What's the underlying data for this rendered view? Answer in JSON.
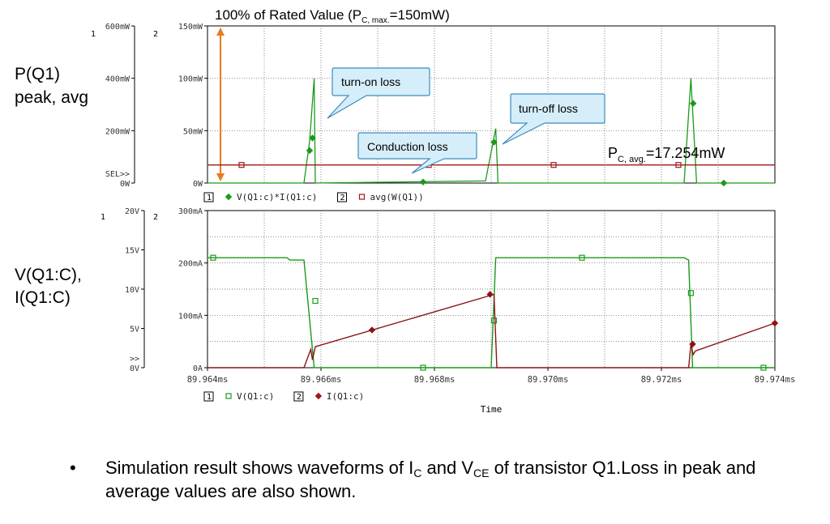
{
  "top_plot": {
    "heading_prefix": "100% of Rated Value (P",
    "heading_sub": "C, max.",
    "heading_suffix": "=150mW)",
    "side_label_line1": "P(Q1)",
    "side_label_line2": "peak, avg",
    "axis1_id": "1",
    "axis2_id": "2",
    "axis1_ticks": [
      "600mW",
      "400mW",
      "200mW",
      "0W"
    ],
    "axis1_sel": "SEL>>",
    "axis2_ticks": [
      "150mW",
      "100mW",
      "50mW",
      "0W"
    ],
    "legend": [
      {
        "box": "1",
        "marker": "diamond",
        "color": "#1a9a1a",
        "label": "V(Q1:c)*I(Q1:c)"
      },
      {
        "box": "2",
        "marker": "square",
        "color": "#a01818",
        "label": "avg(W(Q1))"
      }
    ],
    "callouts": {
      "turn_on": "turn-on loss",
      "turn_off": "turn-off loss",
      "conduction": "Conduction loss"
    },
    "avg_label_prefix": "P",
    "avg_label_sub": "C, avg.",
    "avg_label_suffix": "=17.254mW"
  },
  "bottom_plot": {
    "side_label_line1": "V(Q1:C),",
    "side_label_line2": "I(Q1:C)",
    "axis1_id": "1",
    "axis2_id": "2",
    "axis1_ticks": [
      "20V",
      "15V",
      "10V",
      "5V",
      "0V"
    ],
    "axis1_sel": ">>",
    "axis2_ticks": [
      "300mA",
      "200mA",
      "100mA",
      "0A"
    ],
    "x_ticks": [
      "89.964ms",
      "89.966ms",
      "89.968ms",
      "89.970ms",
      "89.972ms",
      "89.974ms"
    ],
    "x_title": "Time",
    "legend": [
      {
        "box": "1",
        "marker": "square",
        "color": "#1a9a1a",
        "label": "V(Q1:c)"
      },
      {
        "box": "2",
        "marker": "diamond",
        "color": "#a01818",
        "label": "I(Q1:c)"
      }
    ]
  },
  "bullet": {
    "symbol": "•",
    "t1": "Simulation result shows waveforms of I",
    "s1": "C",
    "t2": " and V",
    "s2": "CE",
    "t3": " of transistor Q1.Loss in peak and average values are also shown."
  },
  "chart_data": [
    {
      "type": "line",
      "title": "100% of Rated Value (PC, max.=150mW)",
      "xlabel": "",
      "ylabel": "P(Q1) peak, avg",
      "x_units": "ms",
      "xlim": [
        89.964,
        89.974
      ],
      "ylim": [
        0,
        150
      ],
      "y_units": "mW",
      "grid": true,
      "series": [
        {
          "name": "V(Q1:c)*I(Q1:c)",
          "color": "#1a9a1a",
          "points": [
            [
              89.964,
              0
            ],
            [
              89.9657,
              0
            ],
            [
              89.9658,
              40
            ],
            [
              89.96588,
              100
            ],
            [
              89.9659,
              0
            ],
            [
              89.9689,
              2
            ],
            [
              89.96908,
              52
            ],
            [
              89.96912,
              0
            ],
            [
              89.9724,
              0
            ],
            [
              89.97252,
              100
            ],
            [
              89.97262,
              0
            ],
            [
              89.974,
              0
            ]
          ],
          "markers": [
            [
              89.9658,
              31
            ],
            [
              89.96585,
              43
            ],
            [
              89.9678,
              1
            ],
            [
              89.96905,
              39
            ],
            [
              89.97256,
              76
            ],
            [
              89.9731,
              0
            ]
          ]
        },
        {
          "name": "avg(W(Q1))",
          "color": "#a01818",
          "points": [
            [
              89.964,
              17.254
            ],
            [
              89.974,
              17.254
            ]
          ],
          "markers": [
            [
              89.9646,
              17.254
            ],
            [
              89.9679,
              17.254
            ],
            [
              89.9701,
              17.254
            ],
            [
              89.9723,
              17.254
            ]
          ]
        }
      ]
    },
    {
      "type": "line",
      "title": "",
      "xlabel": "Time",
      "ylabel": "V(Q1:C), I(Q1:C)",
      "x_units": "ms",
      "xlim": [
        89.964,
        89.974
      ],
      "ylim_left": [
        0,
        20
      ],
      "ylim_right": [
        0,
        300
      ],
      "grid": true,
      "series": [
        {
          "name": "V(Q1:c)",
          "color": "#1a9a1a",
          "axis": "left",
          "points": [
            [
              89.964,
              14
            ],
            [
              89.9654,
              14
            ],
            [
              89.96545,
              13.7
            ],
            [
              89.9657,
              13.7
            ],
            [
              89.96588,
              0
            ],
            [
              89.969,
              0
            ],
            [
              89.96908,
              14
            ],
            [
              89.9724,
              14
            ],
            [
              89.97248,
              13.7
            ],
            [
              89.97255,
              0
            ],
            [
              89.974,
              0
            ]
          ],
          "markers": [
            [
              89.9641,
              14
            ],
            [
              89.9659,
              8.5
            ],
            [
              89.9678,
              0
            ],
            [
              89.96905,
              6
            ],
            [
              89.9706,
              14
            ],
            [
              89.97252,
              9.5
            ],
            [
              89.9738,
              0
            ]
          ]
        },
        {
          "name": "I(Q1:c)",
          "color": "#8b1414",
          "axis": "right",
          "points": [
            [
              89.964,
              0
            ],
            [
              89.9657,
              0
            ],
            [
              89.96582,
              35
            ],
            [
              89.96585,
              15
            ],
            [
              89.9659,
              40
            ],
            [
              89.96905,
              140
            ],
            [
              89.9691,
              0
            ],
            [
              89.97248,
              0
            ],
            [
              89.97252,
              45
            ],
            [
              89.97256,
              25
            ],
            [
              89.9726,
              32
            ],
            [
              89.974,
              85
            ]
          ],
          "markers": [
            [
              89.9669,
              72
            ],
            [
              89.96898,
              140
            ],
            [
              89.97255,
              45
            ],
            [
              89.974,
              85
            ]
          ]
        }
      ]
    }
  ]
}
